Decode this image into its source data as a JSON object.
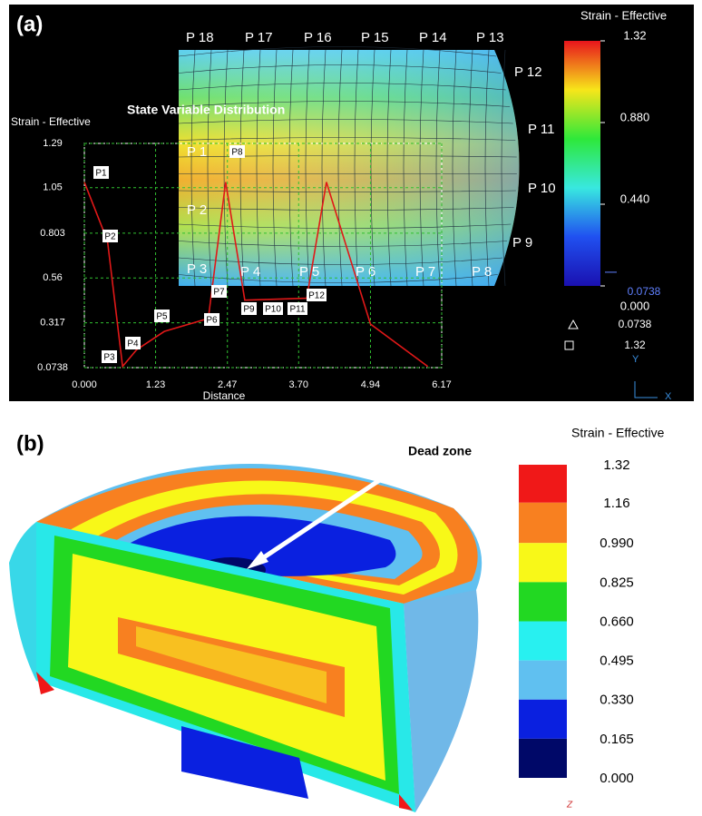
{
  "panel_a": {
    "label": "(a)",
    "mesh_labels": [
      "P 18",
      "P 17",
      "P 16",
      "P 15",
      "P 14",
      "P 13",
      "P 12",
      "P 11",
      "P 10",
      "P 9",
      "P 8",
      "P 7",
      "P 6",
      "P 5",
      "P 4",
      "P 3",
      "P 2",
      "P 1"
    ],
    "legend": {
      "title": "Strain - Effective",
      "ticks": [
        1.32,
        {
          "value": 0.88,
          "label": "0.880"
        },
        {
          "value": 0.44,
          "label": "0.440"
        },
        {
          "value": 0,
          "label": "0.000"
        }
      ],
      "min_marker": 0.0738,
      "triangle_value": 0.0738,
      "square_value": 1.32,
      "colors": [
        "#e8141c",
        "#f7e61a",
        "#2ee83a",
        "#38e8e0",
        "#2050f0",
        "#1a10b0"
      ]
    },
    "axis_y": "Y",
    "axis_x": "X"
  },
  "chart_data": {
    "type": "line",
    "title": "State Variable Distribution",
    "y_label": "Strain - Effective",
    "x_label": "Distance",
    "x": [
      0,
      0.4,
      0.66,
      0.9,
      1.38,
      2.14,
      2.44,
      2.77,
      3.84,
      4.18,
      4.94,
      5.93
    ],
    "values": [
      1.08,
      0.76,
      0.08,
      0.17,
      0.27,
      0.34,
      1.08,
      0.44,
      0.45,
      1.08,
      0.31,
      0.08
    ],
    "color": "#e01818",
    "xlim": [
      0,
      6.17
    ],
    "xticks": [
      {
        "value": 0,
        "label": "0.000"
      },
      1.23,
      2.47,
      {
        "value": 3.7,
        "label": "3.70"
      },
      4.94,
      6.17
    ],
    "ylim": [
      0.0738,
      1.29
    ],
    "yticks": [
      0.0738,
      0.317,
      0.56,
      0.803,
      1.05,
      1.29
    ],
    "grid": true,
    "point_labels": [
      "P1",
      "P2",
      "P3",
      "P4",
      "P5",
      "P6",
      "P7",
      "P8",
      "P9",
      "P10",
      "P11",
      "P12"
    ]
  },
  "panel_b": {
    "label": "(b)",
    "annotation": "Dead zone",
    "legend": {
      "title": "Strain - Effective",
      "ticks": [
        1.32,
        1.16,
        {
          "value": 0.99,
          "label": "0.990"
        },
        0.825,
        {
          "value": 0.66,
          "label": "0.660"
        },
        0.495,
        {
          "value": 0.33,
          "label": "0.330"
        },
        0.165,
        {
          "value": 0,
          "label": "0.000"
        }
      ],
      "colors": [
        "#f01818",
        "#f88020",
        "#f8f818",
        "#22d822",
        "#28f0f0",
        "#60c0f0",
        "#0a20e0",
        "#000868"
      ]
    },
    "axis_z": "Z"
  }
}
